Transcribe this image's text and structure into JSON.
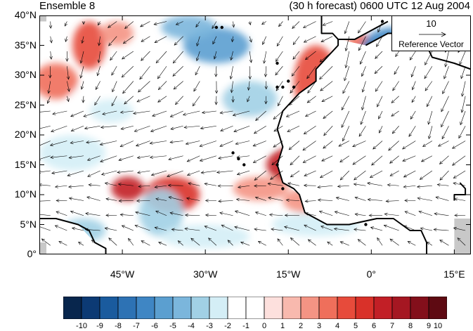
{
  "title_left": "Ensemble 8",
  "title_right": "(30 h forecast) 0600 UTC 12 Aug 2004",
  "lat_labels": [
    "40°N",
    "35°N",
    "30°N",
    "25°N",
    "20°N",
    "15°N",
    "10°N",
    "5°N",
    "0°"
  ],
  "lon_labels": [
    "45°W",
    "30°W",
    "15°W",
    "0°",
    "15°E"
  ],
  "reference_vector": {
    "magnitude": "10",
    "label": "Reference Vector"
  },
  "colorbar": {
    "labels": [
      "-10",
      "-9",
      "-8",
      "-7",
      "-6",
      "-5",
      "-4",
      "-3",
      "-2",
      "-1",
      "0",
      "1",
      "2",
      "3",
      "4",
      "5",
      "6",
      "7",
      "8",
      "9",
      "10"
    ],
    "colors": [
      "#08264d",
      "#0c3a74",
      "#1a5b9e",
      "#2d72b4",
      "#3f86c4",
      "#5b9fd0",
      "#7bb6dc",
      "#a1d0e5",
      "#d4eef6",
      "#ffffff",
      "#ffffff",
      "#fde0dd",
      "#f8b9ae",
      "#f49484",
      "#ef6f5b",
      "#e74b3b",
      "#d93129",
      "#c21f26",
      "#a51722",
      "#830f1b",
      "#5e0a12"
    ]
  },
  "map": {
    "extent": {
      "lon_min": -60,
      "lon_max": 18,
      "lat_min": 0,
      "lat_max": 40
    },
    "land_color": "#c8c8c8",
    "coast_color": "#000000"
  }
}
